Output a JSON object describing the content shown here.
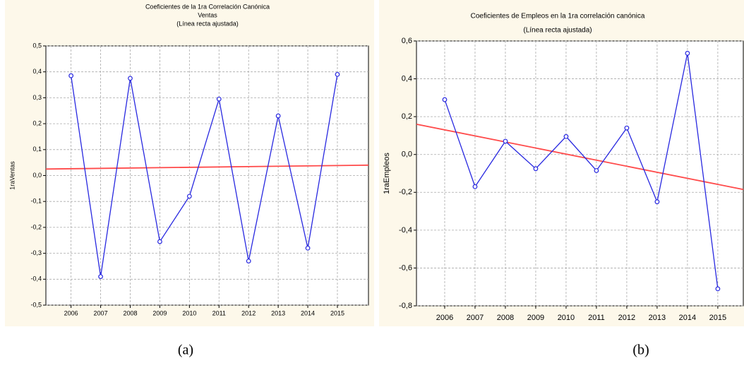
{
  "chart_data": [
    {
      "type": "line",
      "title": "Coeficientes de la 1ra Correlación Canónica",
      "subtitle": [
        "Ventas",
        "(Línea recta ajustada)"
      ],
      "y_label": "1raVentas",
      "caption": "(a)",
      "x": [
        2006,
        2007,
        2008,
        2009,
        2010,
        2011,
        2012,
        2013,
        2014,
        2015
      ],
      "values": [
        0.385,
        -0.39,
        0.375,
        -0.255,
        -0.08,
        0.295,
        -0.33,
        0.23,
        -0.28,
        0.39
      ],
      "color": "#2828e0",
      "fit": {
        "color": "#ff4a4a",
        "values": [
          0.025,
          0.04
        ]
      },
      "xlim": [
        2005.15,
        2016.05
      ],
      "xticks": [
        2006,
        2007,
        2008,
        2009,
        2010,
        2011,
        2012,
        2013,
        2014,
        2015
      ],
      "ylim": [
        -0.5,
        0.5
      ],
      "yticks": [
        {
          "value": -0.5,
          "label": "-0,5"
        },
        {
          "value": -0.4,
          "label": "-0,4"
        },
        {
          "value": -0.3,
          "label": "-0,3"
        },
        {
          "value": -0.2,
          "label": "-0,2"
        },
        {
          "value": -0.1,
          "label": "-0,1"
        },
        {
          "value": 0,
          "label": "0,0"
        },
        {
          "value": 0.1,
          "label": "0,1"
        },
        {
          "value": 0.2,
          "label": "0,2"
        },
        {
          "value": 0.3,
          "label": "0,3"
        },
        {
          "value": 0.4,
          "label": "0,4"
        },
        {
          "value": 0.5,
          "label": "0,5"
        }
      ],
      "grid": true
    },
    {
      "type": "line",
      "title": "Coeficientes de Empleos en la 1ra correlación canónica",
      "subtitle": [
        "(Línea recta ajustada)"
      ],
      "y_label": "1raEmpleos",
      "caption": "(b)",
      "x": [
        2006,
        2007,
        2008,
        2009,
        2010,
        2011,
        2012,
        2013,
        2014,
        2015
      ],
      "values": [
        0.29,
        -0.17,
        0.07,
        -0.075,
        0.095,
        -0.085,
        0.14,
        -0.25,
        0.535,
        -0.71
      ],
      "color": "#2828e0",
      "fit": {
        "color": "#ff4a4a",
        "values": [
          0.16,
          -0.185
        ]
      },
      "xlim": [
        2005.07,
        2015.84
      ],
      "xticks": [
        2006,
        2007,
        2008,
        2009,
        2010,
        2011,
        2012,
        2013,
        2014,
        2015
      ],
      "ylim": [
        -0.8,
        0.6
      ],
      "yticks": [
        {
          "value": -0.8,
          "label": "-0,8"
        },
        {
          "value": -0.6,
          "label": "-0,6"
        },
        {
          "value": -0.4,
          "label": "-0,4"
        },
        {
          "value": -0.2,
          "label": "-0,2"
        },
        {
          "value": 0,
          "label": "0,0"
        },
        {
          "value": 0.2,
          "label": "0,2"
        },
        {
          "value": 0.4,
          "label": "0,4"
        },
        {
          "value": 0.6,
          "label": "0,6"
        }
      ],
      "grid": true
    }
  ]
}
